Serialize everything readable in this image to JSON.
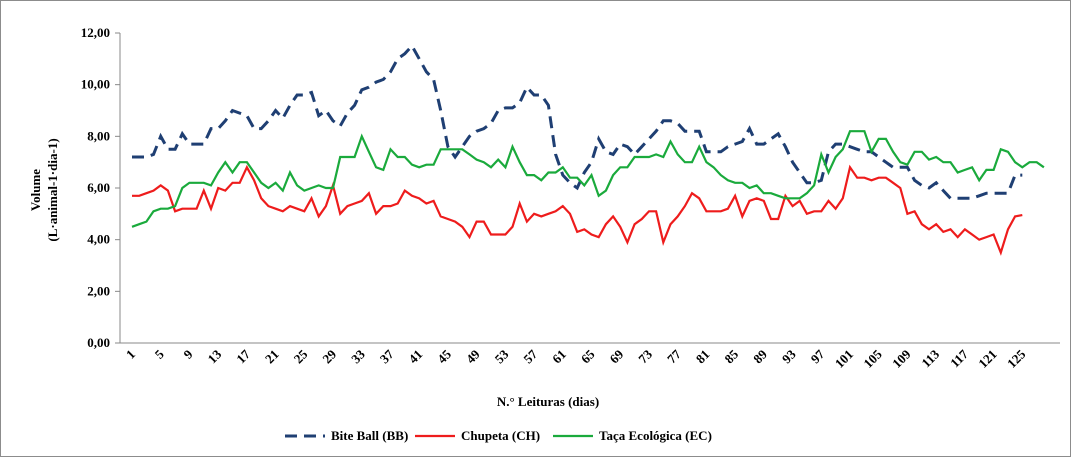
{
  "chart_data": {
    "type": "line",
    "y_label": [
      "Volume",
      "(L·animal-1·dia-1)"
    ],
    "x_label": "N.° Leituras (dias)",
    "categories": [
      "1",
      null,
      null,
      null,
      "5",
      null,
      null,
      null,
      "9",
      null,
      null,
      null,
      "13",
      null,
      null,
      null,
      "17",
      null,
      null,
      null,
      "21",
      null,
      null,
      null,
      "25",
      null,
      null,
      null,
      "29",
      null,
      null,
      null,
      "33",
      null,
      null,
      null,
      "37",
      null,
      null,
      null,
      "41",
      null,
      null,
      null,
      "45",
      null,
      null,
      null,
      "49",
      null,
      null,
      null,
      "53",
      null,
      null,
      null,
      "57",
      null,
      null,
      null,
      "61",
      null,
      null,
      null,
      "65",
      null,
      null,
      null,
      "69",
      null,
      null,
      null,
      "73",
      null,
      null,
      null,
      "77",
      null,
      null,
      null,
      "81",
      null,
      null,
      null,
      "85",
      null,
      null,
      null,
      "89",
      null,
      null,
      null,
      "93",
      null,
      null,
      null,
      "97",
      null,
      null,
      null,
      "101",
      null,
      null,
      null,
      "105",
      null,
      null,
      null,
      "109",
      null,
      null,
      null,
      "113",
      null,
      null,
      null,
      "117",
      null,
      null,
      null,
      "121",
      null,
      null,
      null,
      "125",
      null,
      null,
      null
    ],
    "series": [
      {
        "name": "Bite Ball (BB)",
        "color": "#1f3f73",
        "dash": true,
        "values": [
          7.2,
          7.2,
          7.2,
          7.3,
          8.0,
          7.5,
          7.5,
          8.1,
          7.7,
          7.7,
          7.7,
          8.3,
          8.3,
          8.6,
          9.0,
          8.9,
          8.8,
          8.3,
          8.3,
          8.6,
          9.0,
          8.7,
          9.2,
          9.6,
          9.6,
          9.7,
          8.8,
          9.0,
          8.6,
          8.4,
          8.9,
          9.2,
          9.8,
          9.9,
          10.1,
          10.2,
          10.5,
          11.0,
          11.2,
          11.5,
          11.0,
          10.5,
          10.2,
          9.0,
          7.6,
          7.2,
          7.6,
          8.0,
          8.2,
          8.3,
          8.5,
          9.0,
          9.1,
          9.1,
          9.3,
          9.9,
          9.6,
          9.6,
          9.2,
          7.3,
          6.5,
          6.2,
          6.0,
          6.6,
          7.0,
          7.9,
          7.4,
          7.3,
          7.7,
          7.6,
          7.3,
          7.6,
          7.9,
          8.2,
          8.6,
          8.6,
          8.5,
          8.2,
          8.2,
          8.2,
          7.4,
          7.4,
          7.4,
          7.6,
          7.7,
          7.8,
          8.3,
          7.7,
          7.7,
          7.9,
          8.1,
          7.6,
          7.0,
          6.6,
          6.2,
          6.2,
          6.3,
          7.4,
          7.7,
          7.7,
          7.6,
          7.5,
          7.4,
          7.4,
          7.2,
          7.0,
          6.8,
          6.8,
          6.8,
          6.3,
          6.1,
          6.0,
          6.2,
          5.9,
          5.6,
          5.6,
          5.6,
          5.6,
          5.7,
          5.8,
          5.8,
          5.8,
          5.8,
          6.5,
          6.5,
          null,
          null,
          null
        ]
      },
      {
        "name": "Chupeta (CH)",
        "color": "#ee1c1c",
        "dash": false,
        "values": [
          5.7,
          5.7,
          5.8,
          5.9,
          6.1,
          5.9,
          5.1,
          5.2,
          5.2,
          5.2,
          5.9,
          5.2,
          6.0,
          5.9,
          6.2,
          6.2,
          6.8,
          6.3,
          5.6,
          5.3,
          5.2,
          5.1,
          5.3,
          5.2,
          5.1,
          5.6,
          4.9,
          5.3,
          6.1,
          5.0,
          5.3,
          5.4,
          5.5,
          5.8,
          5.0,
          5.3,
          5.3,
          5.4,
          5.9,
          5.7,
          5.6,
          5.4,
          5.5,
          4.9,
          4.8,
          4.7,
          4.5,
          4.1,
          4.7,
          4.7,
          4.2,
          4.2,
          4.2,
          4.5,
          5.4,
          4.7,
          5.0,
          4.9,
          5.0,
          5.1,
          5.3,
          5.0,
          4.3,
          4.4,
          4.2,
          4.1,
          4.6,
          4.9,
          4.5,
          3.9,
          4.6,
          4.8,
          5.1,
          5.1,
          3.9,
          4.6,
          4.9,
          5.3,
          5.8,
          5.6,
          5.1,
          5.1,
          5.1,
          5.2,
          5.7,
          4.9,
          5.5,
          5.6,
          5.5,
          4.8,
          4.8,
          5.7,
          5.3,
          5.5,
          5.0,
          5.1,
          5.1,
          5.5,
          5.2,
          5.6,
          6.8,
          6.4,
          6.4,
          6.3,
          6.4,
          6.4,
          6.2,
          6.0,
          5.0,
          5.1,
          4.6,
          4.4,
          4.6,
          4.3,
          4.4,
          4.1,
          4.4,
          4.2,
          4.0,
          4.1,
          4.2,
          3.5,
          4.4,
          4.9,
          4.95,
          null,
          null,
          null
        ]
      },
      {
        "name": "Taça Ecológica (EC)",
        "color": "#1aaa3c",
        "dash": false,
        "values": [
          4.5,
          4.6,
          4.7,
          5.1,
          5.2,
          5.2,
          5.3,
          6.0,
          6.2,
          6.2,
          6.2,
          6.1,
          6.6,
          7.0,
          6.6,
          7.0,
          7.0,
          6.6,
          6.2,
          6.0,
          6.2,
          5.9,
          6.6,
          6.1,
          5.9,
          6.0,
          6.1,
          6.0,
          6.0,
          7.2,
          7.2,
          7.2,
          8.0,
          7.4,
          6.8,
          6.7,
          7.5,
          7.2,
          7.2,
          6.9,
          6.8,
          6.9,
          6.9,
          7.5,
          7.5,
          7.5,
          7.5,
          7.3,
          7.1,
          7.0,
          6.8,
          7.1,
          6.8,
          7.6,
          7.0,
          6.5,
          6.5,
          6.3,
          6.6,
          6.6,
          6.8,
          6.4,
          6.4,
          6.1,
          6.5,
          5.7,
          5.9,
          6.5,
          6.8,
          6.8,
          7.2,
          7.2,
          7.2,
          7.3,
          7.2,
          7.8,
          7.3,
          7.0,
          7.0,
          7.6,
          7.0,
          6.8,
          6.5,
          6.3,
          6.2,
          6.2,
          6.0,
          6.1,
          5.8,
          5.8,
          5.7,
          5.6,
          5.6,
          5.6,
          5.8,
          6.1,
          7.3,
          6.6,
          7.2,
          7.5,
          8.2,
          8.2,
          8.2,
          7.4,
          7.9,
          7.9,
          7.4,
          7.0,
          6.9,
          7.4,
          7.4,
          7.1,
          7.2,
          7.0,
          7.0,
          6.6,
          6.7,
          6.8,
          6.3,
          6.7,
          6.7,
          7.5,
          7.4,
          7.0,
          6.8,
          7.0,
          7.0,
          6.8
        ]
      }
    ],
    "ylim": [
      0,
      12
    ],
    "yticks": [
      {
        "value": 0,
        "label": "0,00"
      },
      {
        "value": 2,
        "label": "2,00"
      },
      {
        "value": 4,
        "label": "4,00"
      },
      {
        "value": 6,
        "label": "6,00"
      },
      {
        "value": 8,
        "label": "8,00"
      },
      {
        "value": 10,
        "label": "10,00"
      },
      {
        "value": 12,
        "label": "12,00"
      }
    ],
    "grid": false
  }
}
